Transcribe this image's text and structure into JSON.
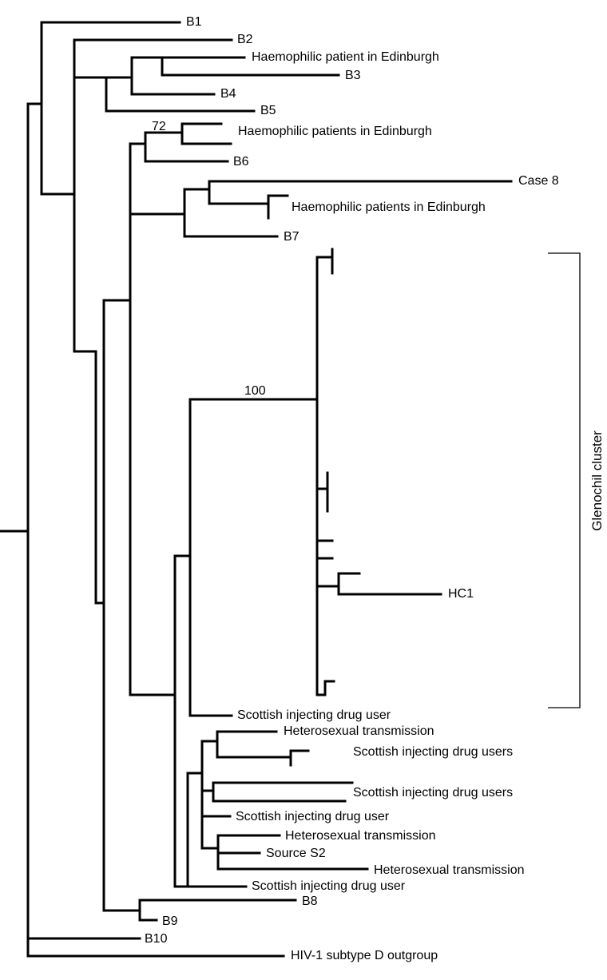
{
  "taxa": {
    "b1": "B1",
    "b2": "B2",
    "haemo_patient": "Haemophilic patient in Edinburgh",
    "b3": "B3",
    "b4": "B4",
    "b5": "B5",
    "haemo_patients_a": "Haemophilic patients in Edinburgh",
    "b6": "B6",
    "case8": "Case 8",
    "haemo_patients_b": "Haemophilic patients in Edinburgh",
    "b7": "B7",
    "hc1": "HC1",
    "sidu_1": "Scottish injecting drug user",
    "hetero_1": "Heterosexual transmission",
    "sidus_1": "Scottish injecting drug users",
    "sidus_2": "Scottish injecting drug users",
    "sidu_2": "Scottish injecting drug user",
    "hetero_2": "Heterosexual transmission",
    "source_s2": "Source S2",
    "hetero_3": "Heterosexual transmission",
    "sidu_3": "Scottish injecting drug user",
    "b8": "B8",
    "b9": "B9",
    "b10": "B10",
    "outgroup": "HIV-1 subtype D outgroup"
  },
  "bootstrap": {
    "node_72": "72",
    "node_100": "100"
  },
  "cluster": {
    "label": "Glenochil cluster"
  }
}
